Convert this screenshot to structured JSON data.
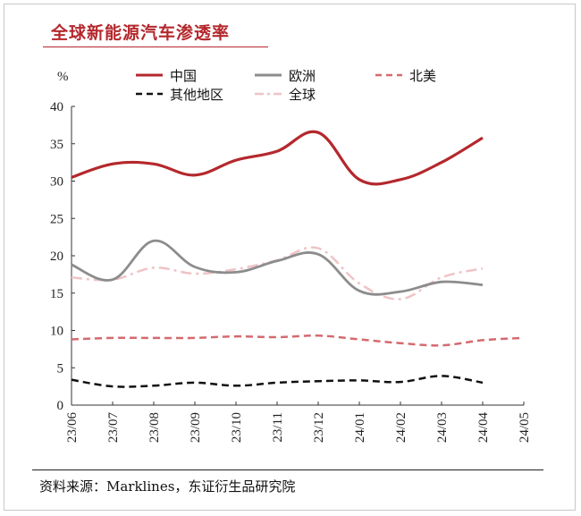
{
  "title": "全球新能源汽车渗透率",
  "source": "资料来源：Marklines，东证衍生品研究院",
  "chart_data": {
    "type": "line",
    "ylabel": "%",
    "ylim": [
      0,
      40
    ],
    "yticks": [
      0,
      5,
      10,
      15,
      20,
      25,
      30,
      35,
      40
    ],
    "categories": [
      "23/06",
      "23/07",
      "23/08",
      "23/09",
      "23/10",
      "23/11",
      "23/12",
      "24/01",
      "24/02",
      "24/03",
      "24/04",
      "24/05"
    ],
    "grid": false,
    "legend_position": "top",
    "series": [
      {
        "name": "中国",
        "color": "#b4282d",
        "dash": "solid",
        "values": [
          30.5,
          32.3,
          32.3,
          30.8,
          32.8,
          34.0,
          36.5,
          30.2,
          30.2,
          32.5,
          35.8,
          null
        ]
      },
      {
        "name": "欧洲",
        "color": "#8c8c8c",
        "dash": "solid",
        "values": [
          18.8,
          16.8,
          22.0,
          18.5,
          17.8,
          19.3,
          20.2,
          15.3,
          15.2,
          16.5,
          16.1,
          null
        ]
      },
      {
        "name": "北美",
        "color": "#d46a6f",
        "dash": "dash",
        "values": [
          8.8,
          9.0,
          9.0,
          9.0,
          9.2,
          9.1,
          9.3,
          8.8,
          8.3,
          8.0,
          8.7,
          9.0
        ]
      },
      {
        "name": "其他地区",
        "color": "#111111",
        "dash": "dash",
        "values": [
          3.4,
          2.5,
          2.6,
          3.0,
          2.6,
          3.0,
          3.2,
          3.3,
          3.1,
          3.9,
          3.0,
          null
        ]
      },
      {
        "name": "全球",
        "color": "#efc3c6",
        "dash": "dashdot",
        "values": [
          17.1,
          16.8,
          18.4,
          17.6,
          18.2,
          19.4,
          21.0,
          16.3,
          14.2,
          17.1,
          18.3,
          null
        ]
      }
    ]
  }
}
